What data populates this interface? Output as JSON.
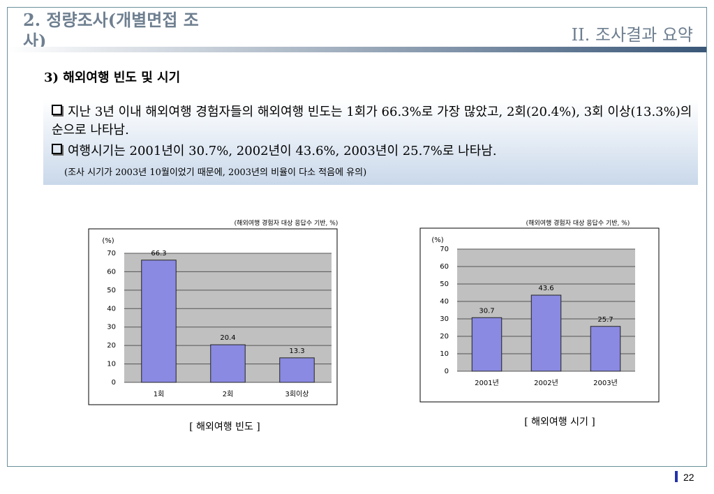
{
  "header": {
    "title": "2. 정량조사(개별면접 조사)",
    "section": "II. 조사결과 요약"
  },
  "subheading": "3) 해외여행 빈도 및 시기",
  "summary": {
    "bullets": [
      "지난 3년 이내 해외여행 경험자들의 해외여행 빈도는 1회가 66.3%로 가장 많았고, 2회(20.4%), 3회 이상(13.3%)의 순으로 나타남.",
      "여행시기는 2001년이 30.7%, 2002년이 43.6%, 2003년이 25.7%로 나타남."
    ],
    "note": "(조사 시기가 2003년 10월이었기 때문에, 2003년의 비율이 다소 적음에 유의)"
  },
  "chart_data": [
    {
      "type": "bar",
      "subtitle": "(해외여행 경험자 대상 응답수 기반, %)",
      "y_label": "(%)",
      "categories": [
        "1회",
        "2회",
        "3회이상"
      ],
      "values": [
        66.3,
        20.4,
        13.3
      ],
      "color": "#8a8ae2",
      "ylim": [
        0,
        70
      ],
      "yticks": [
        0,
        10,
        20,
        30,
        40,
        50,
        60,
        70
      ],
      "grid": true,
      "caption": "[ 해외여행 빈도 ]"
    },
    {
      "type": "bar",
      "subtitle": "(해외여행 경험자 대상 응답수 기반, %)",
      "y_label": "(%)",
      "categories": [
        "2001년",
        "2002년",
        "2003년"
      ],
      "values": [
        30.7,
        43.6,
        25.7
      ],
      "color": "#8a8ae2",
      "ylim": [
        0,
        70
      ],
      "yticks": [
        0,
        10,
        20,
        30,
        40,
        50,
        60,
        70
      ],
      "grid": true,
      "caption": "[ 해외여행 시기 ]"
    }
  ],
  "page_number": "22"
}
